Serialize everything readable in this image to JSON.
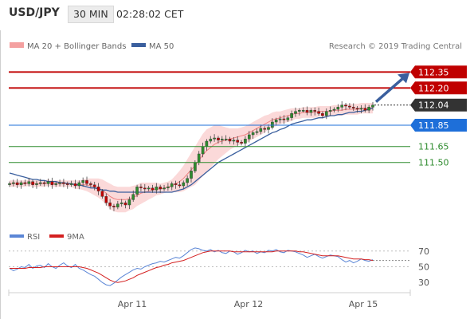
{
  "header": {
    "symbol": "USD/JPY",
    "timeframe": "30 MIN",
    "time": "02:28:02 CET"
  },
  "credit": "Research © 2019 Trading Central",
  "colors": {
    "resistance": "#c00000",
    "current": "#333333",
    "pivot": "#1e6fd9",
    "support": "#2e8b2e",
    "ma50": "#3a5f9e",
    "bollinger_fill": "#fbd9d9",
    "ma20": "#f08080",
    "candle_up": "#2e8b2e",
    "candle_down": "#c00000",
    "rsi": "#5b86d6",
    "rsi_ma": "#d42020",
    "arrow": "#3a5f9e"
  },
  "icons": [
    "arrow-up-right-icon"
  ],
  "chart_data": [
    {
      "type": "line",
      "panel": "price",
      "title": "",
      "legend": [
        "MA 20 + Bollinger Bands",
        "MA 50"
      ],
      "legend_placement": "top-left",
      "x_ticks": [
        "Apr 11",
        "Apr 12",
        "Apr 15"
      ],
      "ylim": [
        110.95,
        112.45
      ],
      "grid": false,
      "levels": [
        {
          "value": 112.35,
          "label": "112.35",
          "kind": "resistance"
        },
        {
          "value": 112.2,
          "label": "112.20",
          "kind": "resistance"
        },
        {
          "value": 112.04,
          "label": "112.04",
          "kind": "current"
        },
        {
          "value": 111.85,
          "label": "111.85",
          "kind": "pivot"
        },
        {
          "value": 111.65,
          "label": "111.65",
          "kind": "support"
        },
        {
          "value": 111.5,
          "label": "111.50",
          "kind": "support"
        }
      ],
      "price": [
        111.3,
        111.31,
        111.29,
        111.31,
        111.3,
        111.32,
        111.29,
        111.3,
        111.31,
        111.3,
        111.32,
        111.29,
        111.3,
        111.31,
        111.3,
        111.29,
        111.3,
        111.28,
        111.31,
        111.33,
        111.3,
        111.29,
        111.27,
        111.23,
        111.18,
        111.12,
        111.09,
        111.08,
        111.11,
        111.12,
        111.1,
        111.15,
        111.2,
        111.27,
        111.26,
        111.25,
        111.26,
        111.24,
        111.27,
        111.25,
        111.26,
        111.27,
        111.3,
        111.29,
        111.28,
        111.31,
        111.35,
        111.42,
        111.5,
        111.58,
        111.65,
        111.7,
        111.72,
        111.73,
        111.71,
        111.72,
        111.72,
        111.7,
        111.71,
        111.69,
        111.68,
        111.72,
        111.76,
        111.78,
        111.79,
        111.82,
        111.81,
        111.83,
        111.88,
        111.9,
        111.91,
        111.9,
        111.92,
        111.96,
        111.98,
        111.99,
        111.99,
        111.97,
        111.99,
        111.98,
        111.96,
        111.94,
        111.98,
        111.99,
        112.0,
        112.02,
        112.04,
        112.03,
        112.02,
        112.01,
        112.0,
        112.01,
        111.99,
        112.02,
        112.04
      ],
      "ma20": [
        111.3,
        111.3,
        111.3,
        111.3,
        111.3,
        111.31,
        111.3,
        111.3,
        111.3,
        111.3,
        111.31,
        111.3,
        111.3,
        111.3,
        111.3,
        111.3,
        111.3,
        111.29,
        111.29,
        111.29,
        111.29,
        111.28,
        111.27,
        111.26,
        111.24,
        111.21,
        111.18,
        111.16,
        111.15,
        111.15,
        111.15,
        111.16,
        111.17,
        111.19,
        111.21,
        111.22,
        111.23,
        111.24,
        111.25,
        111.25,
        111.26,
        111.27,
        111.28,
        111.3,
        111.32,
        111.35,
        111.39,
        111.43,
        111.47,
        111.52,
        111.57,
        111.61,
        111.64,
        111.67,
        111.69,
        111.7,
        111.71,
        111.72,
        111.73,
        111.74,
        111.75,
        111.76,
        111.78,
        111.8,
        111.82,
        111.84,
        111.86,
        111.88,
        111.9,
        111.91,
        111.92,
        111.93,
        111.94,
        111.95,
        111.96,
        111.96,
        111.97,
        111.97,
        111.97,
        111.97,
        111.98,
        111.98,
        111.98,
        111.98,
        111.99,
        111.99,
        111.99,
        112.0,
        112.0,
        112.0,
        112.0,
        112.01,
        112.01,
        112.01,
        112.01
      ],
      "bb_width": [
        0.03,
        0.03,
        0.03,
        0.03,
        0.03,
        0.03,
        0.03,
        0.03,
        0.03,
        0.03,
        0.03,
        0.03,
        0.03,
        0.03,
        0.03,
        0.03,
        0.03,
        0.04,
        0.04,
        0.05,
        0.06,
        0.07,
        0.08,
        0.09,
        0.1,
        0.11,
        0.12,
        0.12,
        0.12,
        0.12,
        0.12,
        0.11,
        0.11,
        0.1,
        0.1,
        0.09,
        0.08,
        0.07,
        0.06,
        0.05,
        0.05,
        0.05,
        0.06,
        0.08,
        0.1,
        0.12,
        0.14,
        0.16,
        0.18,
        0.19,
        0.2,
        0.2,
        0.19,
        0.18,
        0.16,
        0.14,
        0.12,
        0.1,
        0.09,
        0.08,
        0.08,
        0.08,
        0.08,
        0.08,
        0.08,
        0.08,
        0.08,
        0.07,
        0.07,
        0.07,
        0.06,
        0.06,
        0.06,
        0.06,
        0.05,
        0.05,
        0.05,
        0.05,
        0.05,
        0.05,
        0.05,
        0.05,
        0.05,
        0.05,
        0.05,
        0.05,
        0.05,
        0.05,
        0.05,
        0.05,
        0.05,
        0.05,
        0.05,
        0.05,
        0.05
      ],
      "ma50": [
        111.4,
        111.39,
        111.38,
        111.37,
        111.36,
        111.35,
        111.34,
        111.34,
        111.33,
        111.33,
        111.32,
        111.32,
        111.32,
        111.31,
        111.31,
        111.3,
        111.3,
        111.29,
        111.29,
        111.28,
        111.27,
        111.26,
        111.26,
        111.25,
        111.24,
        111.24,
        111.23,
        111.23,
        111.22,
        111.22,
        111.22,
        111.22,
        111.22,
        111.22,
        111.22,
        111.22,
        111.22,
        111.22,
        111.22,
        111.22,
        111.22,
        111.22,
        111.22,
        111.23,
        111.24,
        111.25,
        111.27,
        111.29,
        111.32,
        111.35,
        111.38,
        111.41,
        111.44,
        111.47,
        111.5,
        111.52,
        111.54,
        111.56,
        111.58,
        111.6,
        111.62,
        111.64,
        111.66,
        111.68,
        111.7,
        111.72,
        111.74,
        111.76,
        111.78,
        111.79,
        111.81,
        111.82,
        111.84,
        111.86,
        111.87,
        111.88,
        111.89,
        111.9,
        111.9,
        111.91,
        111.92,
        111.92,
        111.93,
        111.94,
        111.94,
        111.95,
        111.95,
        111.96,
        111.97,
        111.97,
        111.98,
        111.98,
        111.99,
        112.0,
        112.01
      ]
    },
    {
      "type": "line",
      "panel": "rsi",
      "title": "",
      "legend": [
        "RSI",
        "9MA"
      ],
      "legend_placement": "top-left",
      "ylim": [
        20,
        80
      ],
      "y_ticks": [
        70,
        50,
        30
      ],
      "rsi": [
        48,
        45,
        47,
        50,
        49,
        53,
        48,
        51,
        52,
        49,
        54,
        50,
        48,
        52,
        55,
        51,
        49,
        53,
        48,
        46,
        43,
        40,
        38,
        34,
        30,
        27,
        26,
        29,
        33,
        37,
        40,
        43,
        46,
        48,
        47,
        50,
        52,
        54,
        55,
        57,
        56,
        58,
        60,
        62,
        61,
        64,
        68,
        72,
        74,
        73,
        71,
        70,
        72,
        69,
        71,
        68,
        67,
        70,
        69,
        66,
        68,
        71,
        69,
        70,
        67,
        69,
        68,
        71,
        70,
        72,
        69,
        68,
        71,
        70,
        69,
        67,
        65,
        62,
        64,
        66,
        63,
        61,
        63,
        65,
        64,
        63,
        59,
        56,
        58,
        55,
        57,
        60,
        58,
        57,
        59
      ],
      "rsi_ma": [
        48,
        48,
        48,
        48,
        48,
        49,
        49,
        49,
        49,
        50,
        50,
        50,
        50,
        50,
        50,
        50,
        50,
        50,
        50,
        49,
        48,
        46,
        44,
        42,
        39,
        36,
        33,
        31,
        30,
        31,
        32,
        34,
        36,
        39,
        41,
        43,
        45,
        47,
        49,
        50,
        52,
        53,
        55,
        56,
        57,
        58,
        60,
        62,
        64,
        66,
        68,
        69,
        70,
        70,
        70,
        70,
        70,
        70,
        69,
        69,
        69,
        69,
        69,
        69,
        69,
        69,
        69,
        69,
        69,
        70,
        70,
        70,
        70,
        70,
        70,
        69,
        69,
        68,
        67,
        66,
        65,
        64,
        64,
        64,
        64,
        64,
        63,
        62,
        61,
        60,
        60,
        60,
        59,
        59,
        58
      ]
    }
  ]
}
